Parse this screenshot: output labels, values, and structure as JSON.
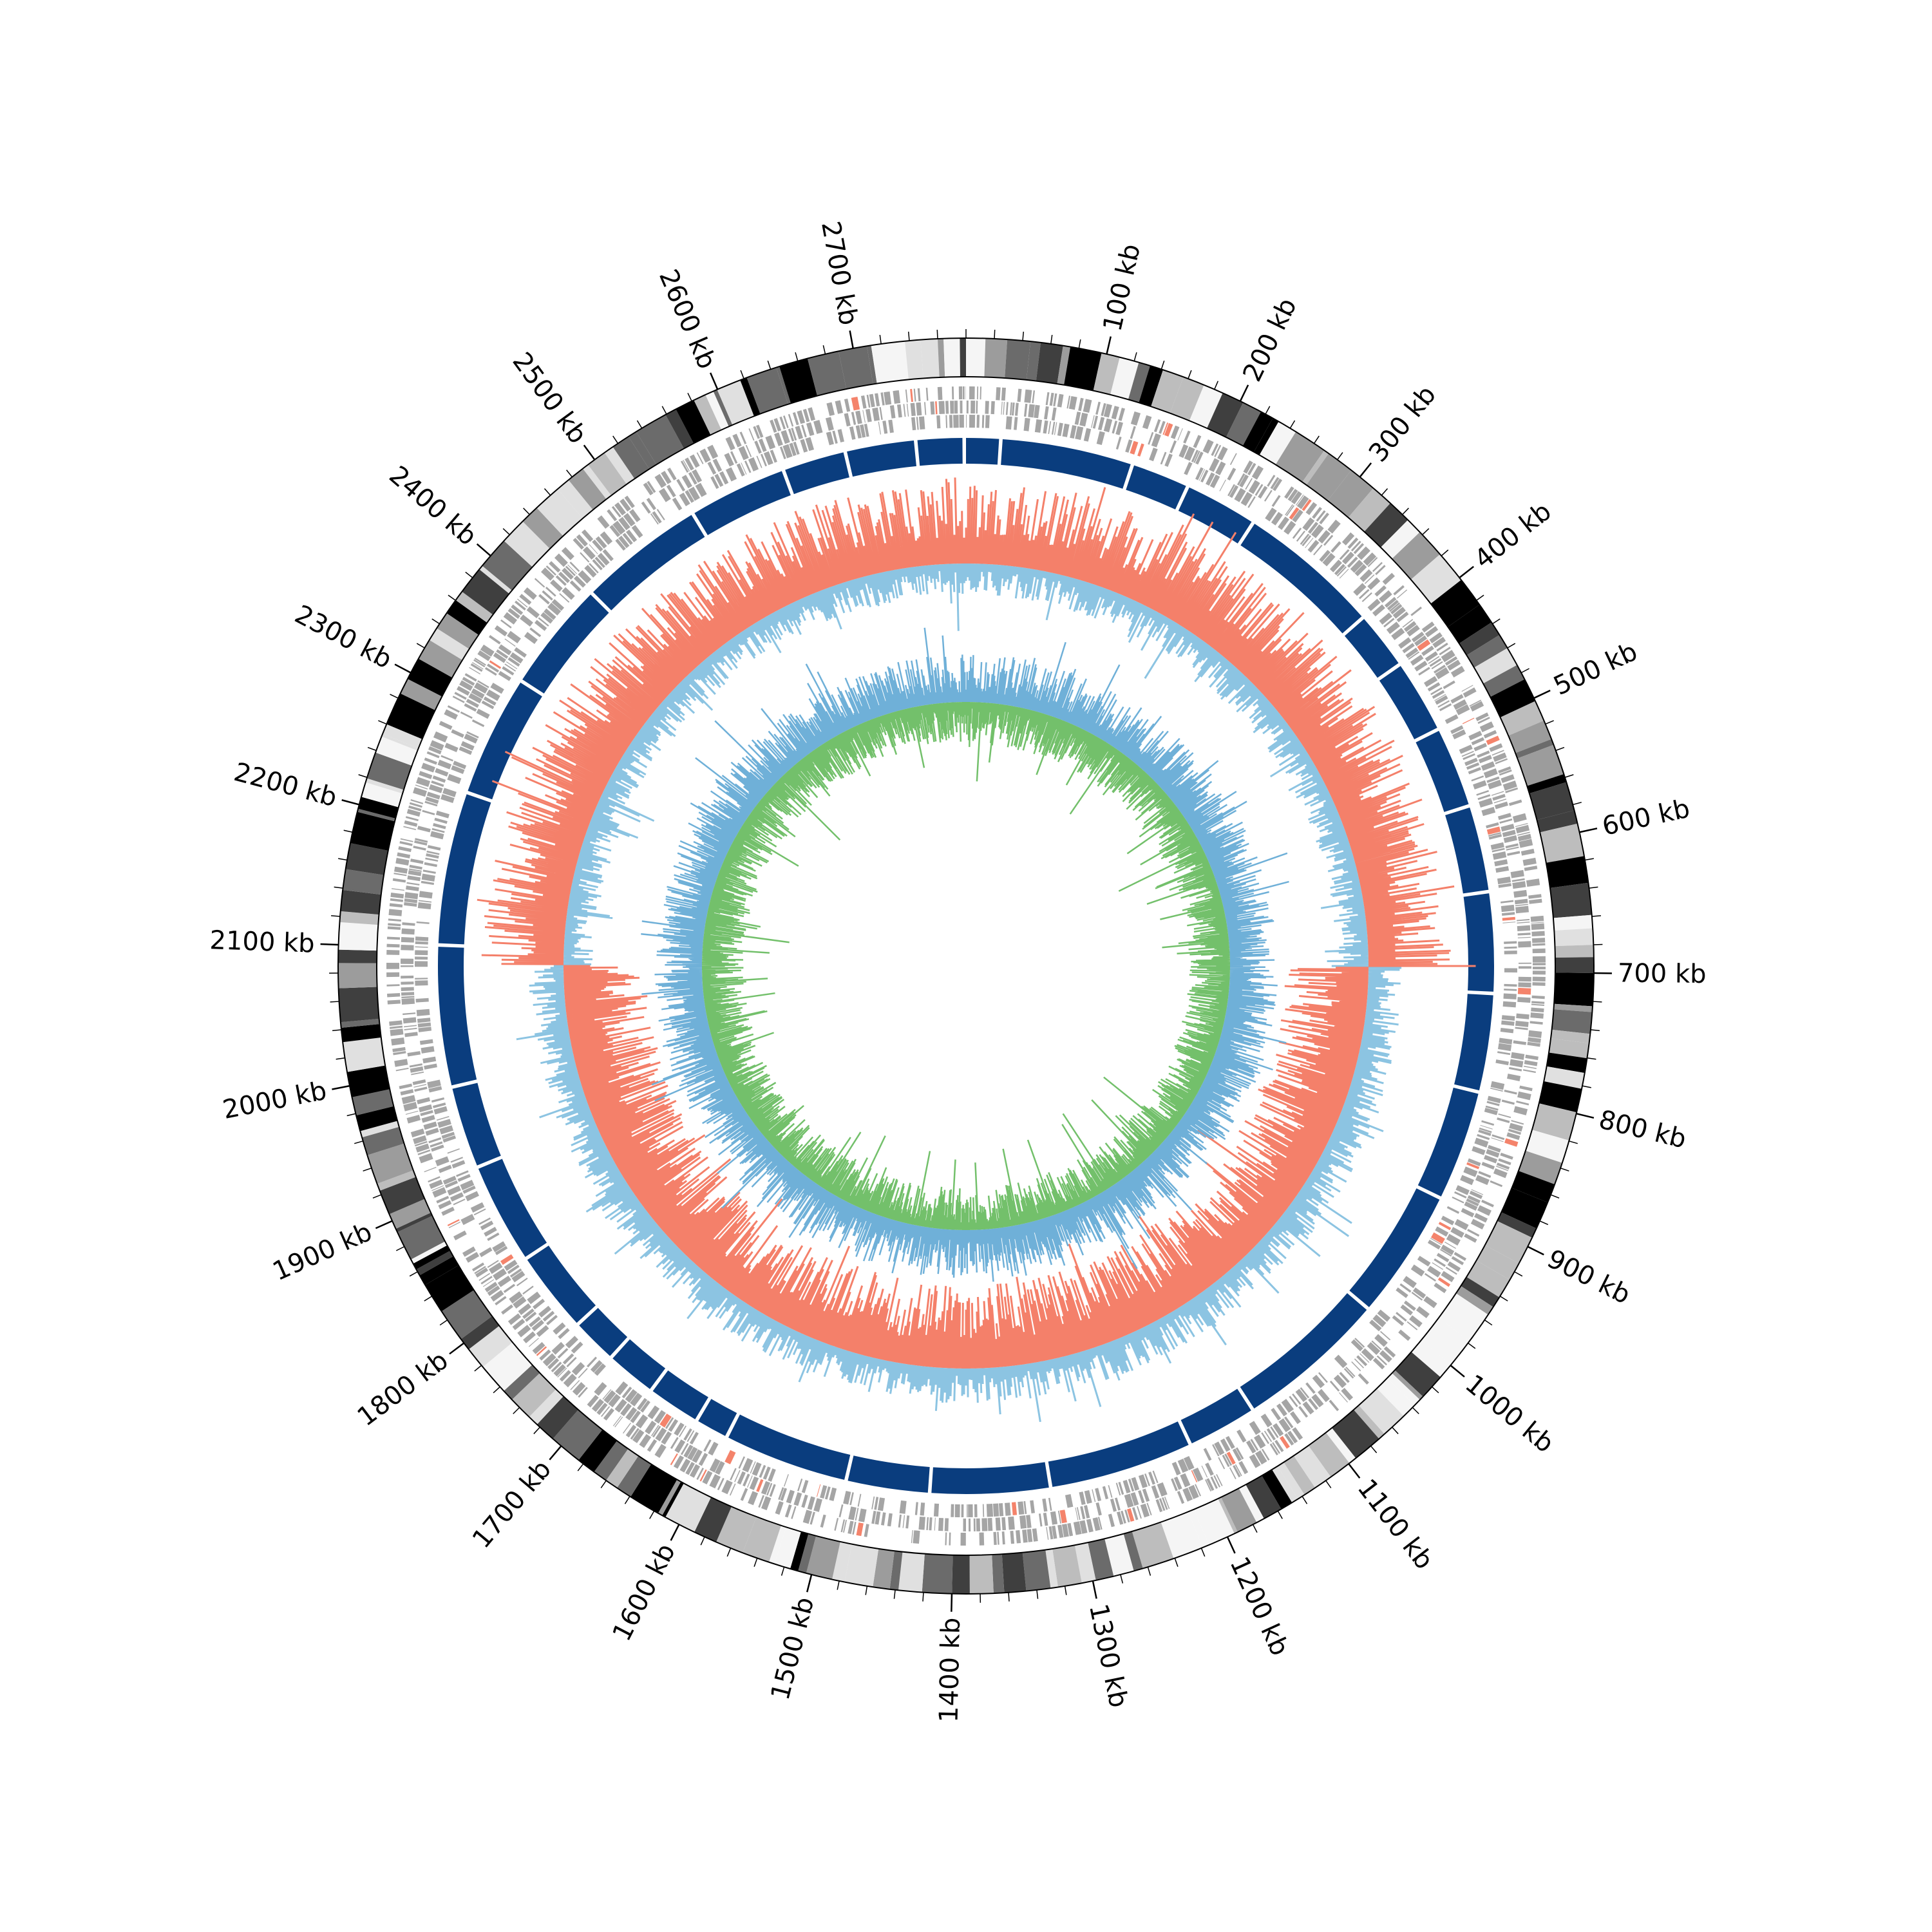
{
  "genome_map": {
    "total_length_kb": 2780,
    "tick_unit": "kb",
    "major_tick_labels": [
      "100 kb",
      "200 kb",
      "300 kb",
      "400 kb",
      "500 kb",
      "600 kb",
      "700 kb",
      "800 kb",
      "900 kb",
      "1000 kb",
      "1100 kb",
      "1200 kb",
      "1300 kb",
      "1400 kb",
      "1500 kb",
      "1600 kb",
      "1700 kb",
      "1800 kb",
      "1900 kb",
      "2000 kb",
      "2100 kb",
      "2200 kb",
      "2300 kb",
      "2400 kb",
      "2500 kb",
      "2600 kb",
      "2700 kb"
    ],
    "major_tick_positions_kb": [
      100,
      200,
      300,
      400,
      500,
      600,
      700,
      800,
      900,
      1000,
      1100,
      1200,
      1300,
      1400,
      1500,
      1600,
      1700,
      1800,
      1900,
      2000,
      2100,
      2200,
      2300,
      2400,
      2500,
      2600,
      2700
    ],
    "colors": {
      "ideogram_shades": [
        "#000000",
        "#3f3f3f",
        "#6b6b6b",
        "#9c9c9c",
        "#bdbdbd",
        "#e0e0e0",
        "#f5f5f5"
      ],
      "gene_feature": "#a5a5a5",
      "gene_highlight": "#f4836b",
      "contig_blocks": "#0a3d7e",
      "skew_positive": "#8cc4e2",
      "skew_negative": "#f4806a",
      "gc_content": "#6fb0d8",
      "gc_skew": "#73c06b"
    }
  }
}
